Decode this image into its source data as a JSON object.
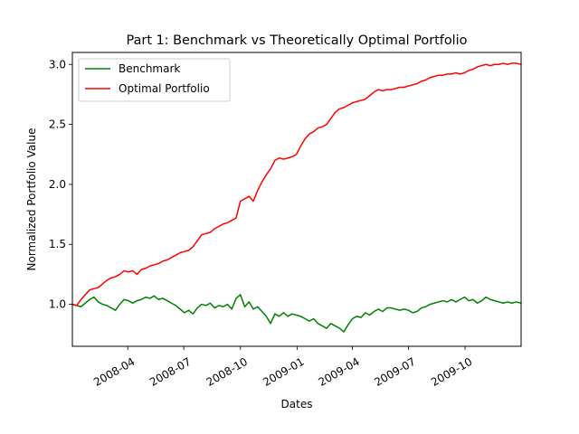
{
  "chart_data": {
    "type": "line",
    "title": "Part 1: Benchmark vs Theoretically Optimal Portfolio",
    "xlabel": "Dates",
    "ylabel": "Normalized Portfolio Value",
    "xlim": [
      "2008-01-02",
      "2009-12-31"
    ],
    "ylim": [
      0.65,
      3.1
    ],
    "x_ticks": [
      "2008-04",
      "2008-07",
      "2008-10",
      "2009-01",
      "2009-04",
      "2009-07",
      "2009-10"
    ],
    "y_ticks": [
      "1.0",
      "1.5",
      "2.0",
      "2.5",
      "3.0"
    ],
    "grid": false,
    "legend": "top-left",
    "series": [
      {
        "name": "Benchmark",
        "color": "#008000",
        "points": [
          [
            "2008-01-02",
            1.0
          ],
          [
            "2008-01-09",
            0.99
          ],
          [
            "2008-01-16",
            0.98
          ],
          [
            "2008-01-23",
            1.01
          ],
          [
            "2008-01-30",
            1.04
          ],
          [
            "2008-02-06",
            1.06
          ],
          [
            "2008-02-13",
            1.02
          ],
          [
            "2008-02-20",
            1.0
          ],
          [
            "2008-02-27",
            0.99
          ],
          [
            "2008-03-05",
            0.97
          ],
          [
            "2008-03-12",
            0.95
          ],
          [
            "2008-03-19",
            1.0
          ],
          [
            "2008-03-26",
            1.04
          ],
          [
            "2008-04-02",
            1.03
          ],
          [
            "2008-04-09",
            1.01
          ],
          [
            "2008-04-16",
            1.03
          ],
          [
            "2008-04-23",
            1.04
          ],
          [
            "2008-04-30",
            1.06
          ],
          [
            "2008-05-07",
            1.05
          ],
          [
            "2008-05-14",
            1.07
          ],
          [
            "2008-05-21",
            1.04
          ],
          [
            "2008-05-28",
            1.05
          ],
          [
            "2008-06-04",
            1.03
          ],
          [
            "2008-06-11",
            1.01
          ],
          [
            "2008-06-18",
            0.99
          ],
          [
            "2008-06-25",
            0.96
          ],
          [
            "2008-07-02",
            0.93
          ],
          [
            "2008-07-09",
            0.95
          ],
          [
            "2008-07-16",
            0.92
          ],
          [
            "2008-07-23",
            0.97
          ],
          [
            "2008-07-30",
            1.0
          ],
          [
            "2008-08-06",
            0.99
          ],
          [
            "2008-08-13",
            1.01
          ],
          [
            "2008-08-20",
            0.97
          ],
          [
            "2008-08-27",
            0.99
          ],
          [
            "2008-09-03",
            0.98
          ],
          [
            "2008-09-10",
            1.0
          ],
          [
            "2008-09-17",
            0.96
          ],
          [
            "2008-09-24",
            1.05
          ],
          [
            "2008-10-01",
            1.08
          ],
          [
            "2008-10-08",
            0.98
          ],
          [
            "2008-10-15",
            1.02
          ],
          [
            "2008-10-22",
            0.96
          ],
          [
            "2008-10-29",
            0.98
          ],
          [
            "2008-11-05",
            0.94
          ],
          [
            "2008-11-12",
            0.9
          ],
          [
            "2008-11-19",
            0.84
          ],
          [
            "2008-11-26",
            0.92
          ],
          [
            "2008-12-03",
            0.9
          ],
          [
            "2008-12-10",
            0.93
          ],
          [
            "2008-12-17",
            0.9
          ],
          [
            "2008-12-24",
            0.92
          ],
          [
            "2008-12-31",
            0.91
          ],
          [
            "2009-01-07",
            0.9
          ],
          [
            "2009-01-14",
            0.88
          ],
          [
            "2009-01-21",
            0.86
          ],
          [
            "2009-01-28",
            0.88
          ],
          [
            "2009-02-04",
            0.84
          ],
          [
            "2009-02-11",
            0.82
          ],
          [
            "2009-02-18",
            0.8
          ],
          [
            "2009-02-25",
            0.84
          ],
          [
            "2009-03-04",
            0.82
          ],
          [
            "2009-03-11",
            0.8
          ],
          [
            "2009-03-18",
            0.77
          ],
          [
            "2009-03-25",
            0.83
          ],
          [
            "2009-04-01",
            0.88
          ],
          [
            "2009-04-08",
            0.9
          ],
          [
            "2009-04-15",
            0.89
          ],
          [
            "2009-04-22",
            0.93
          ],
          [
            "2009-04-29",
            0.91
          ],
          [
            "2009-05-06",
            0.94
          ],
          [
            "2009-05-13",
            0.96
          ],
          [
            "2009-05-20",
            0.94
          ],
          [
            "2009-05-27",
            0.97
          ],
          [
            "2009-06-03",
            0.97
          ],
          [
            "2009-06-10",
            0.96
          ],
          [
            "2009-06-17",
            0.95
          ],
          [
            "2009-06-24",
            0.96
          ],
          [
            "2009-07-01",
            0.95
          ],
          [
            "2009-07-08",
            0.93
          ],
          [
            "2009-07-15",
            0.94
          ],
          [
            "2009-07-22",
            0.97
          ],
          [
            "2009-07-29",
            0.98
          ],
          [
            "2009-08-05",
            1.0
          ],
          [
            "2009-08-12",
            1.01
          ],
          [
            "2009-08-19",
            1.02
          ],
          [
            "2009-08-26",
            1.03
          ],
          [
            "2009-09-02",
            1.02
          ],
          [
            "2009-09-09",
            1.04
          ],
          [
            "2009-09-16",
            1.02
          ],
          [
            "2009-09-23",
            1.04
          ],
          [
            "2009-09-30",
            1.06
          ],
          [
            "2009-10-07",
            1.03
          ],
          [
            "2009-10-14",
            1.04
          ],
          [
            "2009-10-21",
            1.01
          ],
          [
            "2009-10-28",
            1.03
          ],
          [
            "2009-11-04",
            1.06
          ],
          [
            "2009-11-11",
            1.04
          ],
          [
            "2009-11-18",
            1.03
          ],
          [
            "2009-11-25",
            1.02
          ],
          [
            "2009-12-02",
            1.01
          ],
          [
            "2009-12-09",
            1.02
          ],
          [
            "2009-12-16",
            1.01
          ],
          [
            "2009-12-23",
            1.02
          ],
          [
            "2009-12-31",
            1.01
          ]
        ]
      },
      {
        "name": "Optimal Portfolio",
        "color": "#ff0000",
        "points": [
          [
            "2008-01-02",
            1.0
          ],
          [
            "2008-01-09",
            0.99
          ],
          [
            "2008-01-16",
            1.04
          ],
          [
            "2008-01-23",
            1.08
          ],
          [
            "2008-01-30",
            1.12
          ],
          [
            "2008-02-06",
            1.13
          ],
          [
            "2008-02-13",
            1.14
          ],
          [
            "2008-02-20",
            1.17
          ],
          [
            "2008-02-27",
            1.2
          ],
          [
            "2008-03-05",
            1.22
          ],
          [
            "2008-03-12",
            1.23
          ],
          [
            "2008-03-19",
            1.25
          ],
          [
            "2008-03-26",
            1.28
          ],
          [
            "2008-04-02",
            1.27
          ],
          [
            "2008-04-09",
            1.28
          ],
          [
            "2008-04-16",
            1.25
          ],
          [
            "2008-04-23",
            1.29
          ],
          [
            "2008-04-30",
            1.3
          ],
          [
            "2008-05-07",
            1.32
          ],
          [
            "2008-05-14",
            1.33
          ],
          [
            "2008-05-21",
            1.34
          ],
          [
            "2008-05-28",
            1.36
          ],
          [
            "2008-06-04",
            1.37
          ],
          [
            "2008-06-11",
            1.39
          ],
          [
            "2008-06-18",
            1.41
          ],
          [
            "2008-06-25",
            1.43
          ],
          [
            "2008-07-02",
            1.44
          ],
          [
            "2008-07-09",
            1.45
          ],
          [
            "2008-07-16",
            1.48
          ],
          [
            "2008-07-23",
            1.53
          ],
          [
            "2008-07-30",
            1.58
          ],
          [
            "2008-08-06",
            1.59
          ],
          [
            "2008-08-13",
            1.6
          ],
          [
            "2008-08-20",
            1.63
          ],
          [
            "2008-08-27",
            1.65
          ],
          [
            "2008-09-03",
            1.67
          ],
          [
            "2008-09-10",
            1.68
          ],
          [
            "2008-09-17",
            1.7
          ],
          [
            "2008-09-24",
            1.72
          ],
          [
            "2008-10-01",
            1.86
          ],
          [
            "2008-10-08",
            1.88
          ],
          [
            "2008-10-15",
            1.9
          ],
          [
            "2008-10-22",
            1.86
          ],
          [
            "2008-10-29",
            1.95
          ],
          [
            "2008-11-05",
            2.02
          ],
          [
            "2008-11-12",
            2.08
          ],
          [
            "2008-11-19",
            2.13
          ],
          [
            "2008-11-26",
            2.2
          ],
          [
            "2008-12-03",
            2.22
          ],
          [
            "2008-12-10",
            2.21
          ],
          [
            "2008-12-17",
            2.22
          ],
          [
            "2008-12-24",
            2.23
          ],
          [
            "2008-12-31",
            2.25
          ],
          [
            "2009-01-07",
            2.32
          ],
          [
            "2009-01-14",
            2.38
          ],
          [
            "2009-01-21",
            2.42
          ],
          [
            "2009-01-28",
            2.44
          ],
          [
            "2009-02-04",
            2.47
          ],
          [
            "2009-02-11",
            2.48
          ],
          [
            "2009-02-18",
            2.5
          ],
          [
            "2009-02-25",
            2.55
          ],
          [
            "2009-03-04",
            2.6
          ],
          [
            "2009-03-11",
            2.63
          ],
          [
            "2009-03-18",
            2.64
          ],
          [
            "2009-03-25",
            2.66
          ],
          [
            "2009-04-01",
            2.68
          ],
          [
            "2009-04-08",
            2.69
          ],
          [
            "2009-04-15",
            2.7
          ],
          [
            "2009-04-22",
            2.71
          ],
          [
            "2009-04-29",
            2.74
          ],
          [
            "2009-05-06",
            2.77
          ],
          [
            "2009-05-13",
            2.79
          ],
          [
            "2009-05-20",
            2.78
          ],
          [
            "2009-05-27",
            2.79
          ],
          [
            "2009-06-03",
            2.79
          ],
          [
            "2009-06-10",
            2.8
          ],
          [
            "2009-06-17",
            2.81
          ],
          [
            "2009-06-24",
            2.81
          ],
          [
            "2009-07-01",
            2.82
          ],
          [
            "2009-07-08",
            2.83
          ],
          [
            "2009-07-15",
            2.84
          ],
          [
            "2009-07-22",
            2.86
          ],
          [
            "2009-07-29",
            2.87
          ],
          [
            "2009-08-05",
            2.89
          ],
          [
            "2009-08-12",
            2.9
          ],
          [
            "2009-08-19",
            2.91
          ],
          [
            "2009-08-26",
            2.91
          ],
          [
            "2009-09-02",
            2.92
          ],
          [
            "2009-09-09",
            2.92
          ],
          [
            "2009-09-16",
            2.93
          ],
          [
            "2009-09-23",
            2.92
          ],
          [
            "2009-09-30",
            2.93
          ],
          [
            "2009-10-07",
            2.95
          ],
          [
            "2009-10-14",
            2.96
          ],
          [
            "2009-10-21",
            2.98
          ],
          [
            "2009-10-28",
            2.99
          ],
          [
            "2009-11-04",
            3.0
          ],
          [
            "2009-11-11",
            2.99
          ],
          [
            "2009-11-18",
            3.0
          ],
          [
            "2009-11-25",
            3.0
          ],
          [
            "2009-12-02",
            3.01
          ],
          [
            "2009-12-09",
            3.0
          ],
          [
            "2009-12-16",
            3.01
          ],
          [
            "2009-12-23",
            3.01
          ],
          [
            "2009-12-31",
            3.0
          ]
        ]
      }
    ]
  }
}
